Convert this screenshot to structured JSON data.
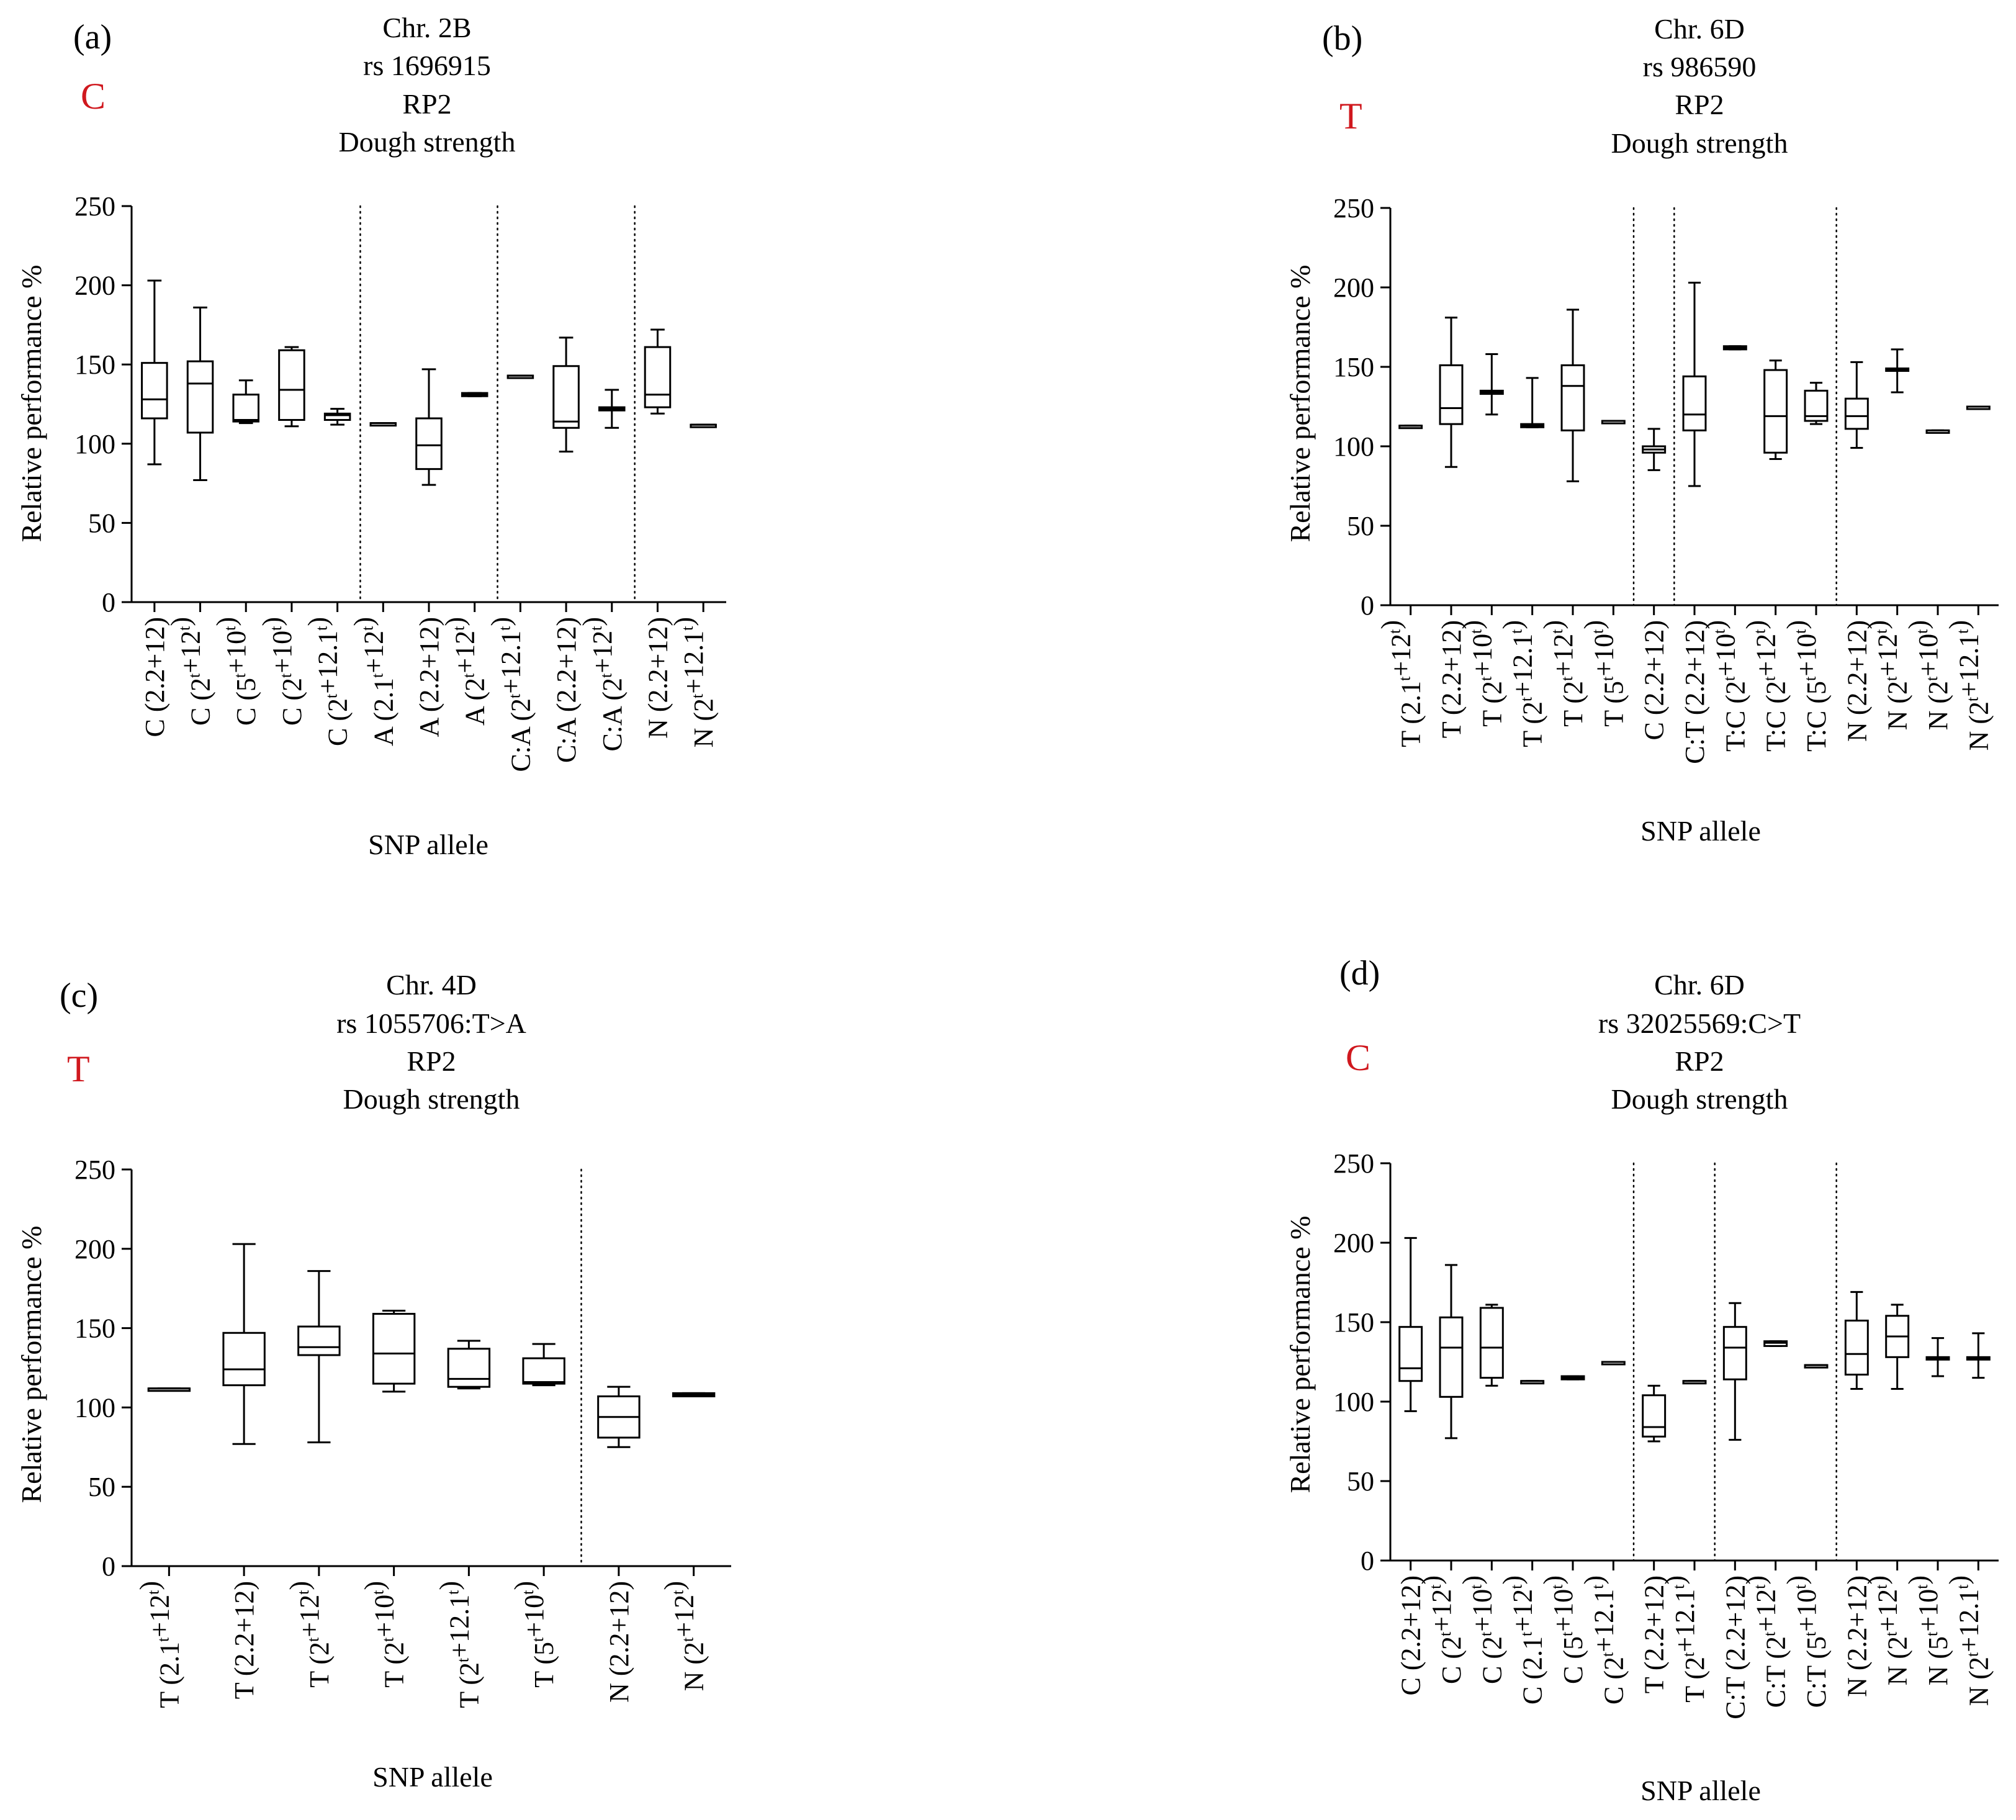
{
  "figure": {
    "ylabel": "Relative performance %",
    "xlabel": "SNP allele"
  },
  "colors": {
    "allele_marker": "#d0181e",
    "ink": "#000000"
  },
  "chart_data": [
    {
      "type": "boxplot",
      "panel": "(a)",
      "title_lines": [
        "Chr. 2B",
        "rs 1696915",
        "RP2",
        "Dough strength"
      ],
      "favourable_allele": "C",
      "xlabel": "SNP allele",
      "ylabel": "Relative performance %",
      "ylim": [
        0,
        250
      ],
      "yticks": [
        0,
        50,
        100,
        150,
        200,
        250
      ],
      "group_separators_after_index": [
        4,
        7,
        10
      ],
      "categories": [
        "C (2.2+12)",
        "C (2†+12†)",
        "C (5†+10†)",
        "C (2†+10†)",
        "C (2†+12.1†)",
        "A (2.1†+12†)",
        "A (2.2+12)",
        "A (2†+12†)",
        "C:A (2†+12.1†)",
        "C:A (2.2+12)",
        "C:A (2†+12†)",
        "N (2.2+12)",
        "N (2†+12.1†)"
      ],
      "boxes": [
        {
          "min": 87,
          "q1": 116,
          "median": 128,
          "q3": 151,
          "max": 203
        },
        {
          "min": 77,
          "q1": 107,
          "median": 138,
          "q3": 152,
          "max": 186
        },
        {
          "min": 113,
          "q1": 114,
          "median": 115,
          "q3": 131,
          "max": 140
        },
        {
          "min": 111,
          "q1": 115,
          "median": 134,
          "q3": 159,
          "max": 161
        },
        {
          "min": 112,
          "q1": 115,
          "median": 118,
          "q3": 119,
          "max": 122
        },
        {
          "min": 113,
          "q1": 113,
          "median": 113,
          "q3": 113,
          "max": 113
        },
        {
          "min": 74,
          "q1": 84,
          "median": 99,
          "q3": 116,
          "max": 147
        },
        {
          "min": 130,
          "q1": 130,
          "median": 131,
          "q3": 132,
          "max": 132
        },
        {
          "min": 143,
          "q1": 143,
          "median": 143,
          "q3": 143,
          "max": 143
        },
        {
          "min": 95,
          "q1": 110,
          "median": 114,
          "q3": 149,
          "max": 167
        },
        {
          "min": 110,
          "q1": 121,
          "median": 122,
          "q3": 123,
          "max": 134
        },
        {
          "min": 119,
          "q1": 123,
          "median": 131,
          "q3": 161,
          "max": 172
        },
        {
          "min": 112,
          "q1": 112,
          "median": 112,
          "q3": 112,
          "max": 112
        }
      ]
    },
    {
      "type": "boxplot",
      "panel": "(b)",
      "title_lines": [
        "Chr. 6D",
        "rs 986590",
        "RP2",
        "Dough strength"
      ],
      "favourable_allele": "T",
      "xlabel": "SNP allele",
      "ylabel": "Relative performance %",
      "ylim": [
        0,
        250
      ],
      "yticks": [
        0,
        50,
        100,
        150,
        200,
        250
      ],
      "group_separators_after_index": [
        5,
        6,
        10
      ],
      "categories": [
        "T (2.1†+12†)",
        "T (2.2+12)",
        "T (2†+10†)",
        "T (2†+12.1†)",
        "T (2†+12†)",
        "T (5†+10†)",
        "C (2.2+12)",
        "C:T (2.2+12)",
        "T:C (2†+10†)",
        "T:C (2†+12†)",
        "T:C (5†+10†)",
        "N (2.2+12)",
        "N (2†+12†)",
        "N (2†+10†)",
        "N (2†+12.1†)"
      ],
      "boxes": [
        {
          "min": 113,
          "q1": 113,
          "median": 113,
          "q3": 113,
          "max": 113
        },
        {
          "min": 87,
          "q1": 114,
          "median": 124,
          "q3": 151,
          "max": 181
        },
        {
          "min": 120,
          "q1": 133,
          "median": 134,
          "q3": 135,
          "max": 158
        },
        {
          "min": 112,
          "q1": 112,
          "median": 113,
          "q3": 114,
          "max": 143
        },
        {
          "min": 78,
          "q1": 110,
          "median": 138,
          "q3": 151,
          "max": 186
        },
        {
          "min": 116,
          "q1": 116,
          "median": 116,
          "q3": 116,
          "max": 116
        },
        {
          "min": 85,
          "q1": 96,
          "median": 98,
          "q3": 100,
          "max": 111
        },
        {
          "min": 75,
          "q1": 110,
          "median": 120,
          "q3": 144,
          "max": 203
        },
        {
          "min": 161,
          "q1": 161,
          "median": 162,
          "q3": 163,
          "max": 163
        },
        {
          "min": 92,
          "q1": 96,
          "median": 119,
          "q3": 148,
          "max": 154
        },
        {
          "min": 114,
          "q1": 116,
          "median": 119,
          "q3": 135,
          "max": 140
        },
        {
          "min": 99,
          "q1": 111,
          "median": 119,
          "q3": 130,
          "max": 153
        },
        {
          "min": 134,
          "q1": 148,
          "median": 148,
          "q3": 149,
          "max": 161
        },
        {
          "min": 110,
          "q1": 110,
          "median": 110,
          "q3": 110,
          "max": 110
        },
        {
          "min": 125,
          "q1": 125,
          "median": 125,
          "q3": 125,
          "max": 125
        }
      ]
    },
    {
      "type": "boxplot",
      "panel": "(c)",
      "title_lines": [
        "Chr. 4D",
        "rs 1055706:T>A",
        "RP2",
        "Dough strength"
      ],
      "favourable_allele": "T",
      "xlabel": "SNP allele",
      "ylabel": "Relative performance %",
      "ylim": [
        0,
        250
      ],
      "yticks": [
        0,
        50,
        100,
        150,
        200,
        250
      ],
      "group_separators_after_index": [
        5
      ],
      "categories": [
        "T (2.1†+12†)",
        "T (2.2+12)",
        "T (2†+12†)",
        "T (2†+10†)",
        "T (2†+12.1†)",
        "T (5†+10†)",
        "N (2.2+12)",
        "N (2†+12†)"
      ],
      "boxes": [
        {
          "min": 112,
          "q1": 112,
          "median": 112,
          "q3": 112,
          "max": 112
        },
        {
          "min": 77,
          "q1": 114,
          "median": 124,
          "q3": 147,
          "max": 203
        },
        {
          "min": 78,
          "q1": 133,
          "median": 138,
          "q3": 151,
          "max": 186
        },
        {
          "min": 110,
          "q1": 115,
          "median": 134,
          "q3": 159,
          "max": 161
        },
        {
          "min": 112,
          "q1": 113,
          "median": 118,
          "q3": 137,
          "max": 142
        },
        {
          "min": 114,
          "q1": 115,
          "median": 116,
          "q3": 131,
          "max": 140
        },
        {
          "min": 75,
          "q1": 81,
          "median": 94,
          "q3": 107,
          "max": 113
        },
        {
          "min": 107,
          "q1": 107,
          "median": 108,
          "q3": 109,
          "max": 109
        }
      ]
    },
    {
      "type": "boxplot",
      "panel": "(d)",
      "title_lines": [
        "Chr. 6D",
        "rs 32025569:C>T",
        "RP2",
        "Dough strength"
      ],
      "favourable_allele": "C",
      "xlabel": "SNP allele",
      "ylabel": "Relative performance %",
      "ylim": [
        0,
        250
      ],
      "yticks": [
        0,
        50,
        100,
        150,
        200,
        250
      ],
      "group_separators_after_index": [
        5,
        7,
        10
      ],
      "categories": [
        "C (2.2+12)",
        "C (2†+12†)",
        "C (2†+10†)",
        "C (2.1†+12†)",
        "C (5†+10†)",
        "C (2†+12.1†)",
        "T (2.2+12)",
        "T (2†+12.1†)",
        "C:T (2.2+12)",
        "C:T (2†+12†)",
        "C:T (5†+10†)",
        "N (2.2+12)",
        "N (2†+12†)",
        "N (5†+10†)",
        "N (2†+12.1†)"
      ],
      "boxes": [
        {
          "min": 94,
          "q1": 113,
          "median": 121,
          "q3": 147,
          "max": 203
        },
        {
          "min": 77,
          "q1": 103,
          "median": 134,
          "q3": 153,
          "max": 186
        },
        {
          "min": 110,
          "q1": 115,
          "median": 134,
          "q3": 159,
          "max": 161
        },
        {
          "min": 113,
          "q1": 113,
          "median": 113,
          "q3": 113,
          "max": 113
        },
        {
          "min": 114,
          "q1": 114,
          "median": 115,
          "q3": 116,
          "max": 116
        },
        {
          "min": 125,
          "q1": 125,
          "median": 125,
          "q3": 125,
          "max": 125
        },
        {
          "min": 75,
          "q1": 78,
          "median": 84,
          "q3": 104,
          "max": 110
        },
        {
          "min": 113,
          "q1": 113,
          "median": 113,
          "q3": 113,
          "max": 113
        },
        {
          "min": 76,
          "q1": 114,
          "median": 134,
          "q3": 147,
          "max": 162
        },
        {
          "min": 135,
          "q1": 135,
          "median": 137,
          "q3": 138,
          "max": 138
        },
        {
          "min": 123,
          "q1": 123,
          "median": 123,
          "q3": 123,
          "max": 123
        },
        {
          "min": 108,
          "q1": 117,
          "median": 130,
          "q3": 151,
          "max": 169
        },
        {
          "min": 108,
          "q1": 128,
          "median": 141,
          "q3": 154,
          "max": 161
        },
        {
          "min": 116,
          "q1": 127,
          "median": 127,
          "q3": 128,
          "max": 140
        },
        {
          "min": 115,
          "q1": 127,
          "median": 127,
          "q3": 128,
          "max": 143
        }
      ]
    }
  ]
}
